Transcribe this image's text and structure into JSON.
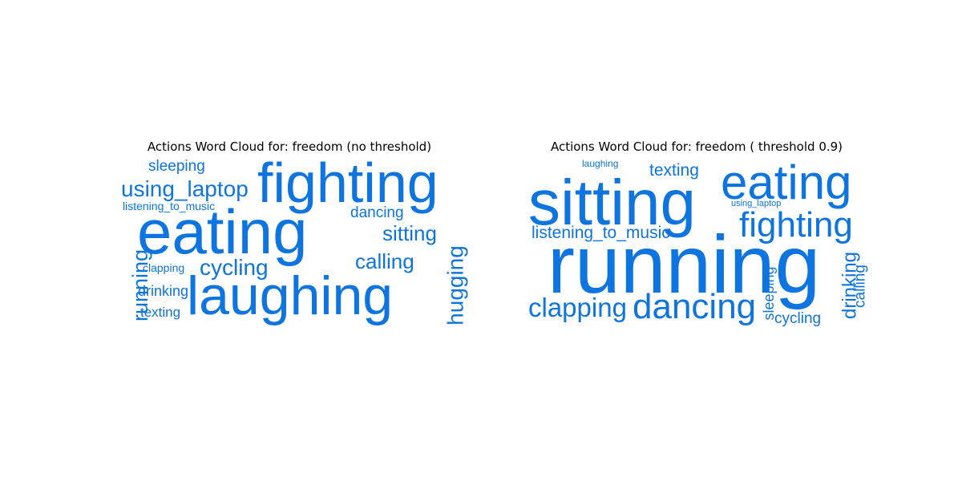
{
  "word_color": "#0d74e0",
  "clouds": [
    {
      "title": "Actions Word Cloud for: freedom (no threshold)",
      "words": [
        {
          "text": "sleeping"
        },
        {
          "text": "fighting"
        },
        {
          "text": "using_laptop"
        },
        {
          "text": "listening_to_music"
        },
        {
          "text": "eating"
        },
        {
          "text": "dancing"
        },
        {
          "text": "sitting"
        },
        {
          "text": "calling"
        },
        {
          "text": "clapping"
        },
        {
          "text": "cycling"
        },
        {
          "text": "running"
        },
        {
          "text": "drinking"
        },
        {
          "text": "laughing"
        },
        {
          "text": "hugging"
        },
        {
          "text": "texting"
        }
      ]
    },
    {
      "title": "Actions Word Cloud for: freedom ( threshold 0.9)",
      "words": [
        {
          "text": "laughing"
        },
        {
          "text": "texting"
        },
        {
          "text": "sitting"
        },
        {
          "text": "eating"
        },
        {
          "text": "using_laptop"
        },
        {
          "text": "fighting"
        },
        {
          "text": "listening_to_music"
        },
        {
          "text": "running"
        },
        {
          "text": "drinking"
        },
        {
          "text": "calling"
        },
        {
          "text": "clapping"
        },
        {
          "text": "dancing"
        },
        {
          "text": "sleeping"
        },
        {
          "text": "cycling"
        }
      ]
    }
  ]
}
